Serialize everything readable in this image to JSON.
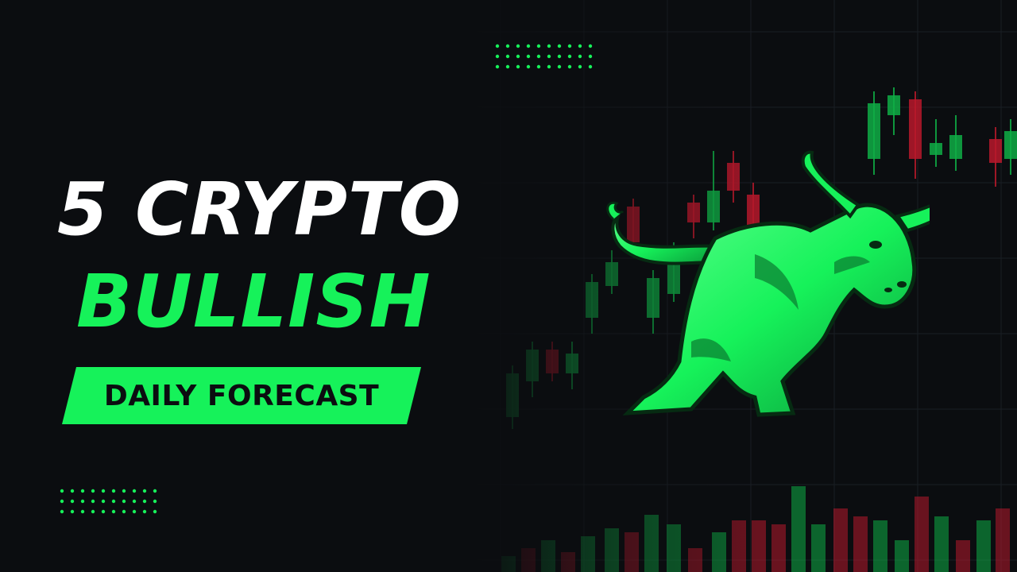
{
  "headline": {
    "line1": "5 CRYPTO",
    "line2": "BULLISH"
  },
  "banner": {
    "label": "DAILY FORECAST"
  },
  "colors": {
    "background": "#0b0d10",
    "accent_green": "#16f25a",
    "candle_green": "#0fae45",
    "candle_red": "#b8192b",
    "text_white": "#ffffff"
  },
  "icons": {
    "mascot": "bull-icon"
  }
}
